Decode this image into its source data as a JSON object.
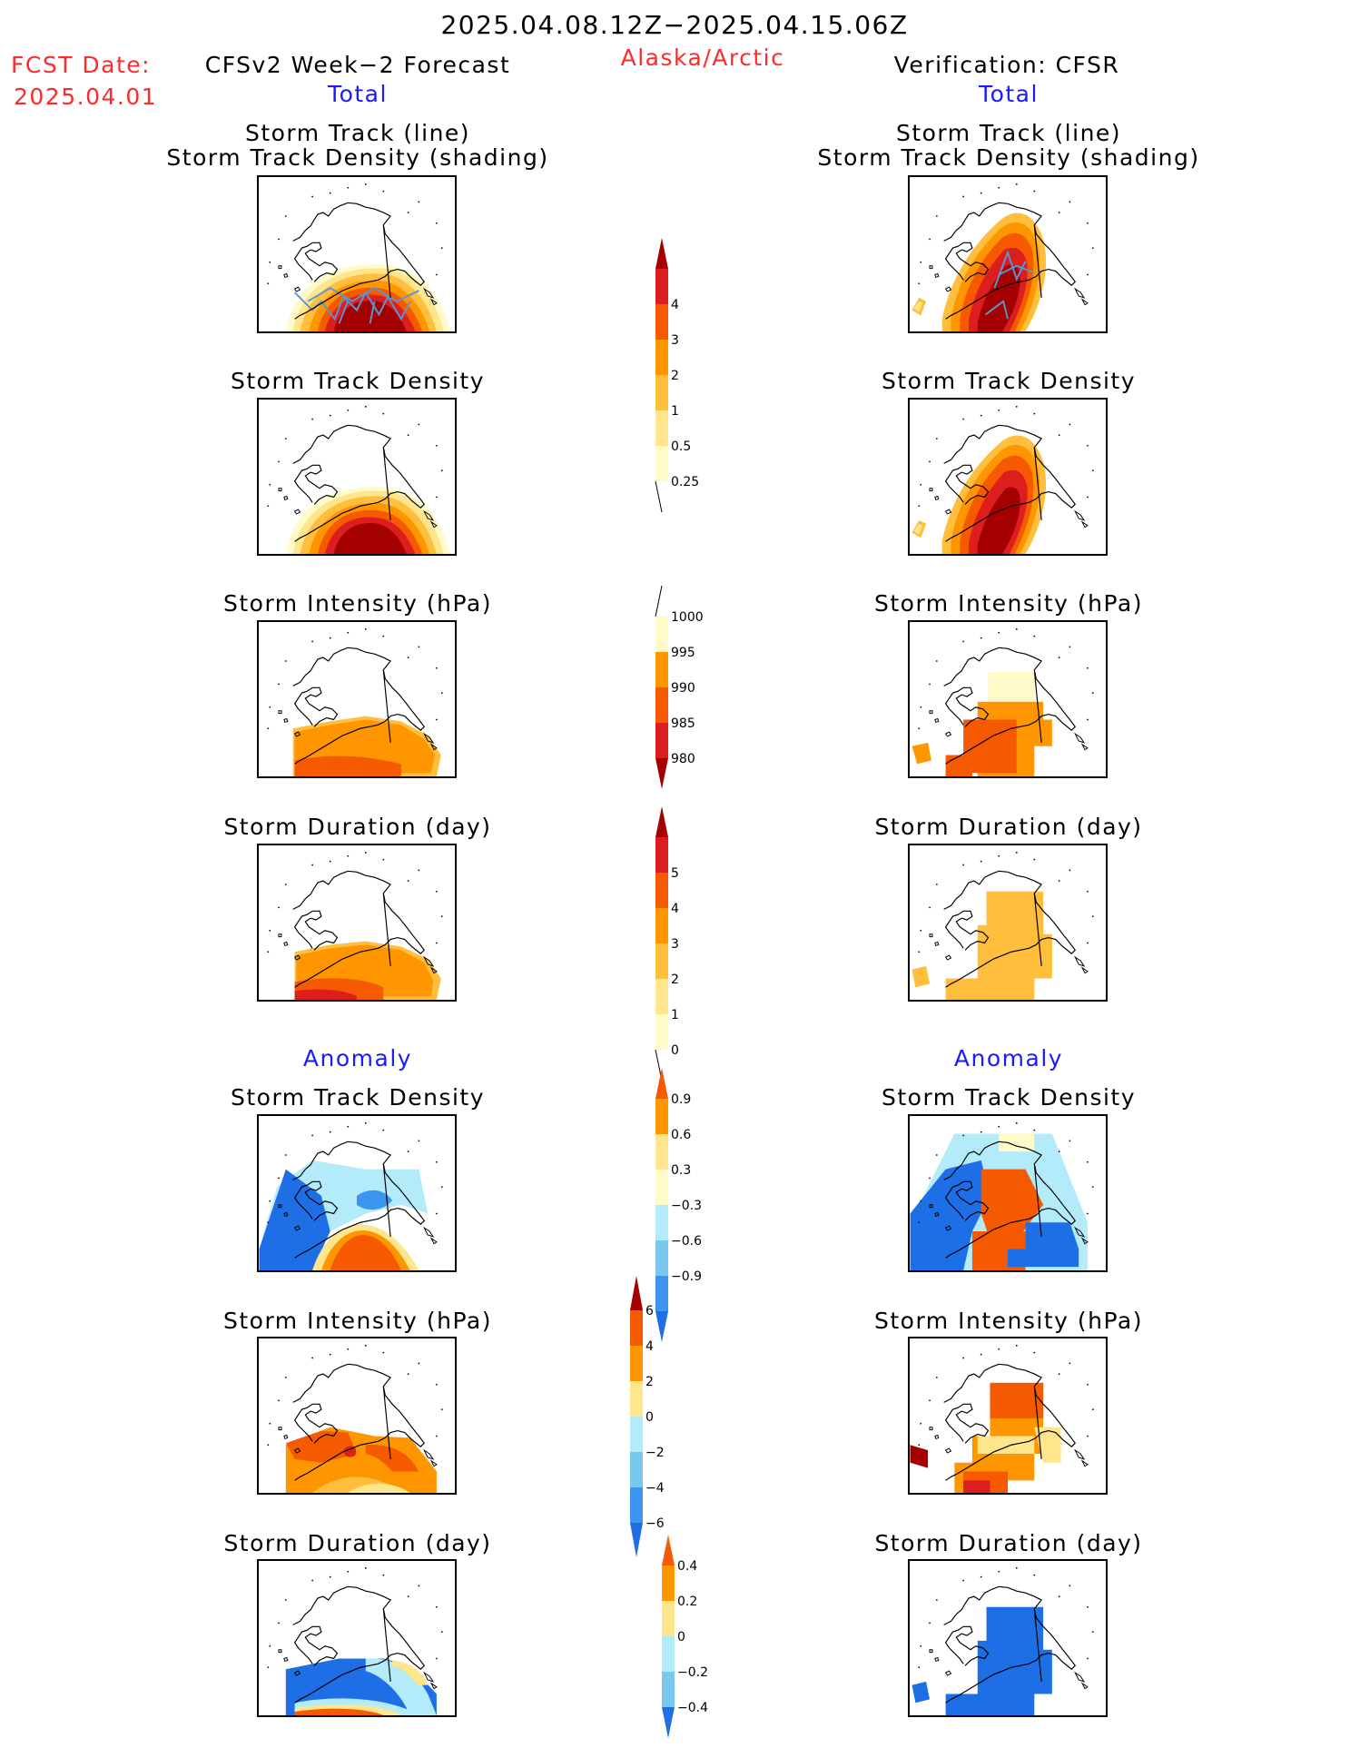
{
  "header": {
    "date_range": "2025.04.08.12Z−2025.04.15.06Z",
    "fcst_date_label": "FCST Date:",
    "fcst_date_value": "2025.04.01",
    "region": "Alaska/Arctic",
    "left_title": "CFSv2 Week−2 Forecast",
    "right_title": "Verification: CFSR",
    "left_subtitle": "Total",
    "right_subtitle": "Total"
  },
  "anomaly_headers": {
    "left": "Anomaly",
    "right": "Anomaly"
  },
  "panel_titles": {
    "track_line": "Storm Track (line)",
    "track_shading": "Storm Track Density (shading)",
    "density": "Storm Track Density",
    "intensity": "Storm Intensity (hPa)",
    "duration": "Storm Duration (day)"
  },
  "colors": {
    "red_text": "#ff2a2a",
    "blue_text": "#1a1aff",
    "dark_red": "#a50000",
    "red": "#dc1e1e",
    "red_orange": "#f55a00",
    "orange": "#ff9600",
    "light_orange": "#ffbe3c",
    "pale_yellow": "#ffe68c",
    "cream": "#fffac8",
    "light_blue": "#b4ebfa",
    "sky_blue": "#78c8f0",
    "mid_blue": "#3c96f0",
    "blue": "#1e6ee6",
    "track_line": "#5a96d2"
  },
  "colorbars": {
    "density_total": {
      "ticks": [
        "4",
        "3",
        "2",
        "1",
        "0.5",
        "0.25"
      ]
    },
    "intensity_total": {
      "ticks": [
        "1000",
        "995",
        "990",
        "985",
        "980"
      ]
    },
    "duration_total": {
      "ticks": [
        "5",
        "4",
        "3",
        "2",
        "1",
        "0"
      ]
    },
    "density_anomaly": {
      "ticks": [
        "0.9",
        "0.6",
        "0.3",
        "−0.3",
        "−0.6",
        "−0.9"
      ]
    },
    "intensity_anomaly": {
      "ticks": [
        "6",
        "4",
        "2",
        "0",
        "−2",
        "−4",
        "−6"
      ]
    },
    "duration_anomaly": {
      "ticks": [
        "0.4",
        "0.2",
        "0",
        "−0.2",
        "−0.4"
      ]
    }
  }
}
